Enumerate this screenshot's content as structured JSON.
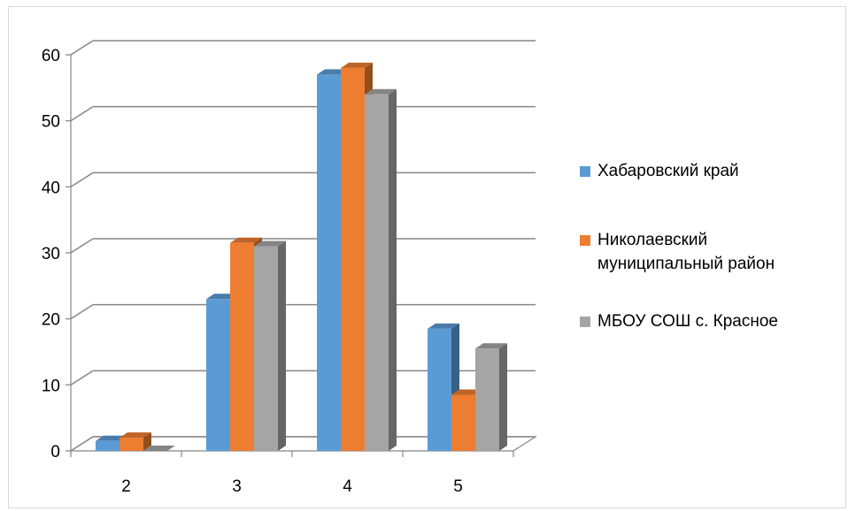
{
  "chart_data": {
    "type": "bar",
    "title": "",
    "xlabel": "",
    "ylabel": "",
    "categories": [
      "2",
      "3",
      "4",
      "5"
    ],
    "ylim": [
      0,
      60
    ],
    "yticks": [
      0,
      10,
      20,
      30,
      40,
      50,
      60
    ],
    "grid": true,
    "legend_position": "right",
    "series": [
      {
        "name": "Хабаровский край",
        "color": "#5b9bd5",
        "values": [
          1.5,
          23,
          57,
          18.5
        ]
      },
      {
        "name": "Николаевский муниципальный район",
        "color": "#ed7d31",
        "values": [
          2,
          31.5,
          58,
          8.5
        ]
      },
      {
        "name": "МБОУ СОШ с. Красное",
        "color": "#a5a5a5",
        "values": [
          0,
          31,
          54,
          15.5
        ]
      }
    ]
  }
}
